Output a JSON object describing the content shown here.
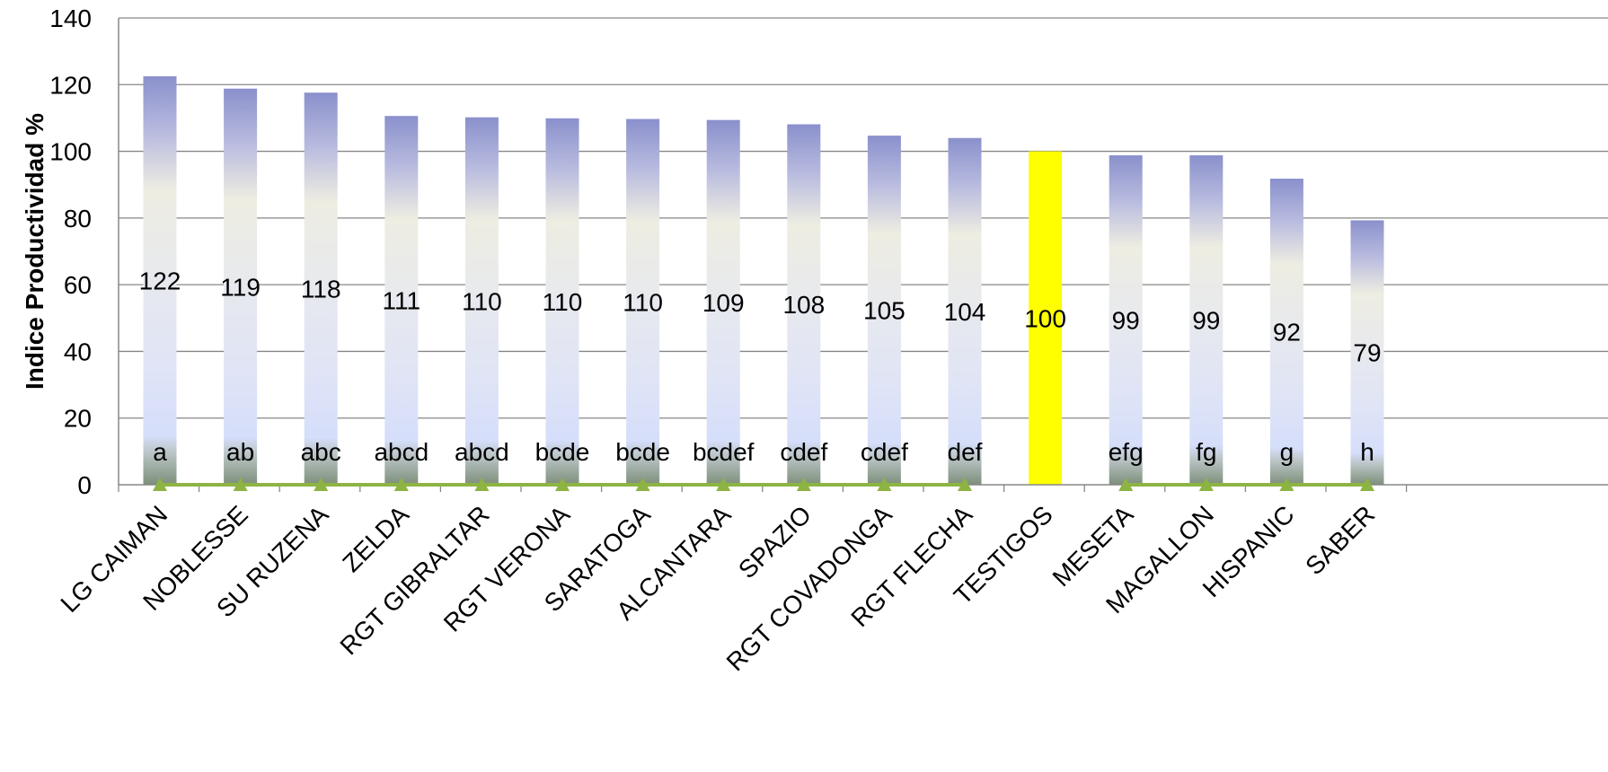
{
  "chart_data": {
    "type": "bar",
    "title": "",
    "xlabel": "",
    "ylabel": "Indice Productividad  %",
    "ylim": [
      0,
      140
    ],
    "yticks": [
      0,
      20,
      40,
      60,
      80,
      100,
      120,
      140
    ],
    "grid": true,
    "categories": [
      "LG CAIMAN",
      "NOBLESSE",
      "SU RUZENA",
      "ZELDA",
      "RGT GIBRALTAR",
      "RGT VERONA",
      "SARATOGA",
      "ALCANTARA",
      "SPAZIO",
      "RGT COVADONGA",
      "RGT FLECHA",
      "TESTIGOS",
      "MESETA",
      "MAGALLON",
      "HISPANIC",
      "SABER"
    ],
    "values": [
      122.5,
      118.8,
      117.6,
      110.6,
      110.2,
      109.9,
      109.7,
      109.4,
      108.1,
      104.7,
      104.0,
      100,
      98.8,
      98.8,
      91.8,
      79.3
    ],
    "value_labels": [
      "122",
      "119",
      "118",
      "111",
      "110",
      "110",
      "110",
      "109",
      "108",
      "105",
      "104",
      "100",
      "99",
      "99",
      "92",
      "79"
    ],
    "significance_letters": [
      "a",
      "ab",
      "abc",
      "abcd",
      "abcd",
      "bcde",
      "bcde",
      "bcdef",
      "cdef",
      "cdef",
      "def",
      "",
      "efg",
      "fg",
      "g",
      "h"
    ],
    "highlight_category": "TESTIGOS",
    "colors": {
      "highlight": "#ffff00",
      "bar_top": "#8a90cc",
      "bar_mid": "#eeede2",
      "bar_low": "#d5defa",
      "bar_base": "#7d8f7a",
      "marker_line": "#8db443",
      "grid": "#878787"
    }
  }
}
